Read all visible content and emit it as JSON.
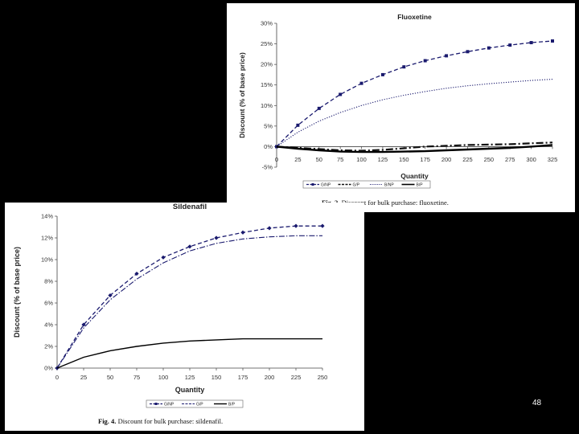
{
  "slide": {
    "number": "48"
  },
  "charts": [
    {
      "caption_label": "Fig. 2.",
      "caption_text": "Discount for bulk purchase: fluoxetine."
    },
    {
      "caption_label": "Fig. 4.",
      "caption_text": "Discount for bulk purchase: sildenafil."
    }
  ],
  "chart_data": [
    {
      "type": "line",
      "title": "Fluoxetine",
      "xlabel": "Quantity",
      "ylabel": "Discount (% of base price)",
      "x": [
        0,
        25,
        50,
        75,
        100,
        125,
        150,
        175,
        200,
        225,
        250,
        275,
        300,
        325
      ],
      "x_tick_labels": [
        "0",
        "25",
        "50",
        "75",
        "100",
        "125",
        "150",
        "175",
        "200",
        "225",
        "250",
        "275",
        "300",
        "325"
      ],
      "ylim": [
        -5,
        30
      ],
      "y_ticks": [
        -5,
        0,
        5,
        10,
        15,
        20,
        25,
        30
      ],
      "y_tick_labels": [
        "-5%",
        "0%",
        "5%",
        "10%",
        "15%",
        "20%",
        "25%",
        "30%"
      ],
      "grid": false,
      "legend_position": "bottom",
      "series": [
        {
          "name": "G/NP",
          "style": "dashed-marker",
          "color": "#1a1a6e",
          "values": [
            0,
            5.2,
            9.3,
            12.7,
            15.4,
            17.5,
            19.4,
            20.9,
            22.1,
            23.1,
            24,
            24.7,
            25.3,
            25.7
          ]
        },
        {
          "name": "G/P",
          "style": "dashdot-thick",
          "color": "#111111",
          "values": [
            0,
            -0.3,
            -0.6,
            -0.9,
            -1.0,
            -0.8,
            -0.4,
            0,
            0.2,
            0.4,
            0.5,
            0.6,
            0.8,
            1.0
          ]
        },
        {
          "name": "B/NP",
          "style": "dotted",
          "color": "#1a1a6e",
          "values": [
            0,
            3.5,
            6.2,
            8.3,
            10,
            11.4,
            12.5,
            13.4,
            14.2,
            14.8,
            15.3,
            15.7,
            16.1,
            16.4
          ]
        },
        {
          "name": "B/P",
          "style": "solid-thick",
          "color": "#000000",
          "values": [
            0,
            -0.5,
            -0.9,
            -1.2,
            -1.3,
            -1.3,
            -1.2,
            -1.1,
            -0.9,
            -0.7,
            -0.5,
            -0.3,
            0,
            0.4
          ]
        }
      ]
    },
    {
      "type": "line",
      "title": "Sildenafil",
      "xlabel": "Quantity",
      "ylabel": "Discount (% of base price)",
      "x": [
        0,
        25,
        50,
        75,
        100,
        125,
        150,
        175,
        200,
        225,
        250
      ],
      "x_tick_labels": [
        "0",
        "25",
        "50",
        "75",
        "100",
        "125",
        "150",
        "175",
        "200",
        "225",
        "250"
      ],
      "ylim": [
        0,
        14
      ],
      "y_ticks": [
        0,
        2,
        4,
        6,
        8,
        10,
        12,
        14
      ],
      "y_tick_labels": [
        "0%",
        "2%",
        "4%",
        "6%",
        "8%",
        "10%",
        "12%",
        "14%"
      ],
      "grid": false,
      "legend_position": "bottom",
      "series": [
        {
          "name": "G/NP",
          "style": "dashed-marker",
          "color": "#1a1a6e",
          "values": [
            0,
            4.0,
            6.7,
            8.7,
            10.2,
            11.2,
            12.0,
            12.5,
            12.9,
            13.1,
            13.1
          ]
        },
        {
          "name": "G/P",
          "style": "dashdot",
          "color": "#1a1a6e",
          "values": [
            0,
            3.7,
            6.3,
            8.2,
            9.7,
            10.8,
            11.5,
            11.9,
            12.1,
            12.2,
            12.2
          ]
        },
        {
          "name": "B/P",
          "style": "solid",
          "color": "#000000",
          "values": [
            0,
            1.0,
            1.6,
            2.0,
            2.3,
            2.5,
            2.6,
            2.7,
            2.7,
            2.7,
            2.7
          ]
        }
      ]
    }
  ]
}
